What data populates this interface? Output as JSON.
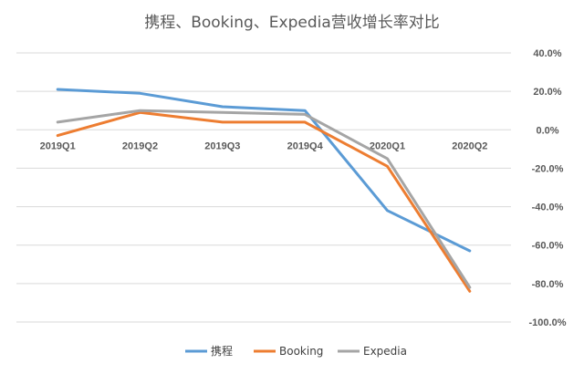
{
  "chart_data": {
    "type": "line",
    "title": "携程、Booking、Expedia营收增长率对比",
    "categories": [
      "2019Q1",
      "2019Q2",
      "2019Q3",
      "2019Q4",
      "2020Q1",
      "2020Q2"
    ],
    "ylim": [
      -100,
      40
    ],
    "yticks": [
      40,
      20,
      0,
      -20,
      -40,
      -60,
      -80,
      -100
    ],
    "ytick_labels": [
      "40.0%",
      "20.0%",
      "0.0%",
      "-20.0%",
      "-40.0%",
      "-60.0%",
      "-80.0%",
      "-100.0%"
    ],
    "y_axis_side": "right",
    "grid": true,
    "legend_position": "bottom",
    "series": [
      {
        "name": "携程",
        "color": "#5B9BD5",
        "values": [
          21,
          19,
          12,
          10,
          -42,
          -63
        ]
      },
      {
        "name": "Booking",
        "color": "#ED7D31",
        "values": [
          -3,
          9,
          4,
          4,
          -19,
          -84
        ]
      },
      {
        "name": "Expedia",
        "color": "#A5A5A5",
        "values": [
          4,
          10,
          9,
          8,
          -15,
          -82
        ]
      }
    ]
  }
}
